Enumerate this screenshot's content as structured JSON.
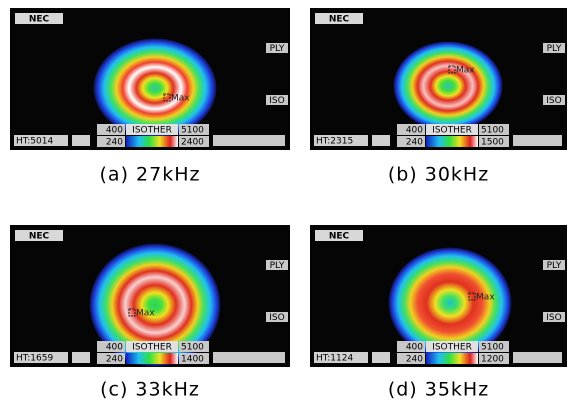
{
  "panels": [
    {
      "logo": "NEC",
      "mode_labels": [
        "PLY",
        "ISO"
      ],
      "ht": "HT:5014",
      "iso_low_top": "400",
      "iso_name": "ISOTHER",
      "iso_high_top": "5100",
      "iso_low_bottom": "240",
      "iso_high_bottom": "2400",
      "marker": "Max",
      "caption": "(a) 27kHz"
    },
    {
      "logo": "NEC",
      "mode_labels": [
        "PLY",
        "ISO"
      ],
      "ht": "HT:2315",
      "iso_low_top": "400",
      "iso_name": "ISOTHER",
      "iso_high_top": "5100",
      "iso_low_bottom": "240",
      "iso_high_bottom": "1500",
      "marker": "Max",
      "caption": "(b) 30kHz"
    },
    {
      "logo": "NEC",
      "mode_labels": [
        "PLY",
        "ISO"
      ],
      "ht": "HT:1659",
      "iso_low_top": "400",
      "iso_name": "ISOTHER",
      "iso_high_top": "5100",
      "iso_low_bottom": "240",
      "iso_high_bottom": "1400",
      "marker": "Max",
      "caption": "(c) 33kHz"
    },
    {
      "logo": "NEC",
      "mode_labels": [
        "PLY",
        "ISO"
      ],
      "ht": "HT:1124",
      "iso_low_top": "400",
      "iso_name": "ISOTHER",
      "iso_high_top": "5100",
      "iso_low_bottom": "240",
      "iso_high_bottom": "1200",
      "marker": "Max",
      "caption": "(d) 35kHz"
    }
  ]
}
